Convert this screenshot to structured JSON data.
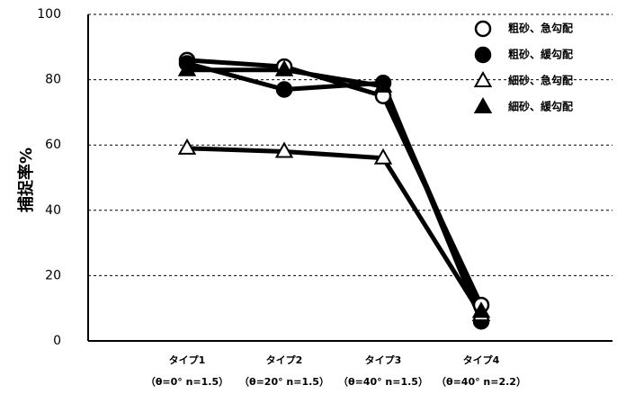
{
  "chart_data": {
    "type": "line",
    "ylabel": "捕捉率%",
    "xlabel": "",
    "ylim": [
      0,
      100
    ],
    "yticks": [
      0,
      20,
      40,
      60,
      80,
      100
    ],
    "grid": true,
    "legend_position": "top-right",
    "categories": [
      "タイプ1",
      "タイプ2",
      "タイプ3",
      "タイプ4"
    ],
    "category_sublabels": [
      "（θ=0°  n=1.5）",
      "（θ=20°  n=1.5）",
      "（θ=40°  n=1.5）",
      "（θ=40°  n=2.2）"
    ],
    "series": [
      {
        "name": "粗砂、急勾配",
        "marker": "circle-open",
        "values": [
          86,
          84,
          75,
          11
        ]
      },
      {
        "name": "粗砂、緩勾配",
        "marker": "circle-filled",
        "values": [
          85,
          77,
          79,
          6
        ]
      },
      {
        "name": "細砂、急勾配",
        "marker": "triangle-open",
        "values": [
          59,
          58,
          56,
          8
        ]
      },
      {
        "name": "細砂、緩勾配",
        "marker": "triangle-filled",
        "values": [
          83,
          83,
          78,
          9
        ]
      }
    ]
  }
}
